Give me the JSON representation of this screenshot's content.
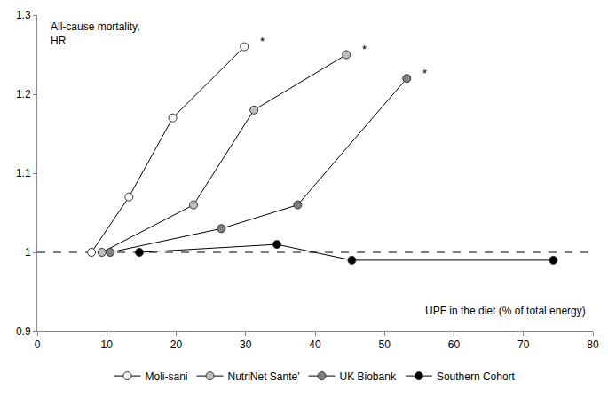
{
  "chart_data": {
    "type": "line",
    "y_label": [
      "All-cause mortality,",
      "HR"
    ],
    "x_label": "UPF in the diet (% of total energy)",
    "xlim": [
      0,
      80
    ],
    "xticks": [
      0,
      10,
      20,
      30,
      40,
      50,
      60,
      70,
      80
    ],
    "ylim": [
      0.9,
      1.3
    ],
    "yticks": [
      0.9,
      1,
      1.1,
      1.2,
      1.3
    ],
    "grid": false,
    "legend": "bottom",
    "marker": "circle",
    "reference_line": {
      "y": 1,
      "line_style": "dashed"
    },
    "series": [
      {
        "name": "Moli-sani",
        "color": "#ffffff",
        "x": [
          7.8,
          13.2,
          19.5,
          29.8
        ],
        "values": [
          1.0,
          1.07,
          1.17,
          1.26
        ],
        "annotation": "*"
      },
      {
        "name": "NutriNet Sante'",
        "color": "#c0c0c0",
        "x": [
          9.3,
          22.5,
          31.2,
          44.5
        ],
        "values": [
          1.0,
          1.06,
          1.18,
          1.25
        ],
        "annotation": "*"
      },
      {
        "name": "UK Biobank",
        "color": "#808080",
        "x": [
          10.5,
          26.5,
          37.5,
          53.2
        ],
        "values": [
          1.0,
          1.03,
          1.06,
          1.22
        ],
        "annotation": "*"
      },
      {
        "name": "Southern Cohort",
        "color": "#000000",
        "x": [
          14.7,
          34.5,
          45.3,
          74.3
        ],
        "values": [
          1.0,
          1.01,
          0.99,
          0.99
        ]
      }
    ]
  }
}
